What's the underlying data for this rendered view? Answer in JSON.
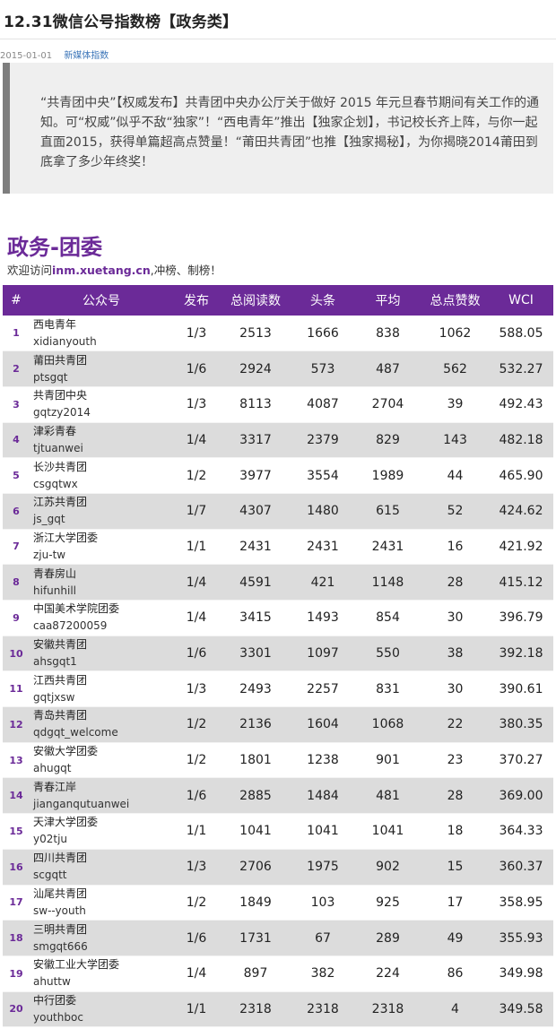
{
  "article": {
    "title": "12.31微信公号指数榜【政务类】",
    "date": "2015-01-01",
    "category": "新媒体指数",
    "intro": "“共青团中央”【权威发布】共青团中央办公厅关于做好 2015 年元旦春节期间有关工作的通知。可“权威”似乎不敌“独家”！“西电青年”推出【独家企划】，书记校长齐上阵，与你一起直面2015，获得单篇超高点赞量！“莆田共青团”也推【独家揭秘】，为你揭晓2014莆田到底拿了多少年终奖！"
  },
  "section": {
    "title": "政务-团委",
    "welcome_prefix": "欢迎访问",
    "welcome_site": "inm.xuetang.cn",
    "welcome_suffix": ",冲榜、制榜！"
  },
  "table": {
    "headers": [
      "#",
      "公众号",
      "发布",
      "总阅读数",
      "头条",
      "平均",
      "总点赞数",
      "WCI"
    ],
    "rows": [
      {
        "rank": "1",
        "name": "西电青年",
        "id": "xidianyouth",
        "publish": "1/3",
        "total_reads": "2513",
        "headline": "1666",
        "avg": "838",
        "likes": "1062",
        "wci": "588.05"
      },
      {
        "rank": "2",
        "name": "莆田共青团",
        "id": "ptsgqt",
        "publish": "1/6",
        "total_reads": "2924",
        "headline": "573",
        "avg": "487",
        "likes": "562",
        "wci": "532.27"
      },
      {
        "rank": "3",
        "name": "共青团中央",
        "id": "gqtzy2014",
        "publish": "1/3",
        "total_reads": "8113",
        "headline": "4087",
        "avg": "2704",
        "likes": "39",
        "wci": "492.43"
      },
      {
        "rank": "4",
        "name": "津彩青春",
        "id": "tjtuanwei",
        "publish": "1/4",
        "total_reads": "3317",
        "headline": "2379",
        "avg": "829",
        "likes": "143",
        "wci": "482.18"
      },
      {
        "rank": "5",
        "name": "长沙共青团",
        "id": "csgqtwx",
        "publish": "1/2",
        "total_reads": "3977",
        "headline": "3554",
        "avg": "1989",
        "likes": "44",
        "wci": "465.90"
      },
      {
        "rank": "6",
        "name": "江苏共青团",
        "id": "js_gqt",
        "publish": "1/7",
        "total_reads": "4307",
        "headline": "1480",
        "avg": "615",
        "likes": "52",
        "wci": "424.62"
      },
      {
        "rank": "7",
        "name": "浙江大学团委",
        "id": "zju-tw",
        "publish": "1/1",
        "total_reads": "2431",
        "headline": "2431",
        "avg": "2431",
        "likes": "16",
        "wci": "421.92"
      },
      {
        "rank": "8",
        "name": "青春房山",
        "id": "hifunhill",
        "publish": "1/4",
        "total_reads": "4591",
        "headline": "421",
        "avg": "1148",
        "likes": "28",
        "wci": "415.12"
      },
      {
        "rank": "9",
        "name": "中国美术学院团委",
        "id": "caa87200059",
        "publish": "1/4",
        "total_reads": "3415",
        "headline": "1493",
        "avg": "854",
        "likes": "30",
        "wci": "396.79"
      },
      {
        "rank": "10",
        "name": "安徽共青团",
        "id": "ahsgqt1",
        "publish": "1/6",
        "total_reads": "3301",
        "headline": "1097",
        "avg": "550",
        "likes": "38",
        "wci": "392.18"
      },
      {
        "rank": "11",
        "name": "江西共青团",
        "id": "gqtjxsw",
        "publish": "1/3",
        "total_reads": "2493",
        "headline": "2257",
        "avg": "831",
        "likes": "30",
        "wci": "390.61"
      },
      {
        "rank": "12",
        "name": "青岛共青团",
        "id": "qdgqt_welcome",
        "publish": "1/2",
        "total_reads": "2136",
        "headline": "1604",
        "avg": "1068",
        "likes": "22",
        "wci": "380.35"
      },
      {
        "rank": "13",
        "name": "安徽大学团委",
        "id": "ahugqt",
        "publish": "1/2",
        "total_reads": "1801",
        "headline": "1238",
        "avg": "901",
        "likes": "23",
        "wci": "370.27"
      },
      {
        "rank": "14",
        "name": "青春江岸",
        "id": "jianganqutuanwei",
        "publish": "1/6",
        "total_reads": "2885",
        "headline": "1484",
        "avg": "481",
        "likes": "28",
        "wci": "369.00"
      },
      {
        "rank": "15",
        "name": "天津大学团委",
        "id": "y02tju",
        "publish": "1/1",
        "total_reads": "1041",
        "headline": "1041",
        "avg": "1041",
        "likes": "18",
        "wci": "364.33"
      },
      {
        "rank": "16",
        "name": "四川共青团",
        "id": "scgqtt",
        "publish": "1/3",
        "total_reads": "2706",
        "headline": "1975",
        "avg": "902",
        "likes": "15",
        "wci": "360.37"
      },
      {
        "rank": "17",
        "name": "汕尾共青团",
        "id": "sw--youth",
        "publish": "1/2",
        "total_reads": "1849",
        "headline": "103",
        "avg": "925",
        "likes": "17",
        "wci": "358.95"
      },
      {
        "rank": "18",
        "name": "三明共青团",
        "id": "smgqt666",
        "publish": "1/6",
        "total_reads": "1731",
        "headline": "67",
        "avg": "289",
        "likes": "49",
        "wci": "355.93"
      },
      {
        "rank": "19",
        "name": "安徽工业大学团委",
        "id": "ahuttw",
        "publish": "1/4",
        "total_reads": "897",
        "headline": "382",
        "avg": "224",
        "likes": "86",
        "wci": "349.98"
      },
      {
        "rank": "20",
        "name": "中行团委",
        "id": "youthboc",
        "publish": "1/1",
        "total_reads": "2318",
        "headline": "2318",
        "avg": "2318",
        "likes": "4",
        "wci": "349.58"
      }
    ]
  },
  "colors": {
    "accent": "#6b2a98",
    "row_alt": "#dcdcdc",
    "quote_bg": "#efefef",
    "quote_bar": "#7e7e7e",
    "category_link": "#3a74b8"
  }
}
